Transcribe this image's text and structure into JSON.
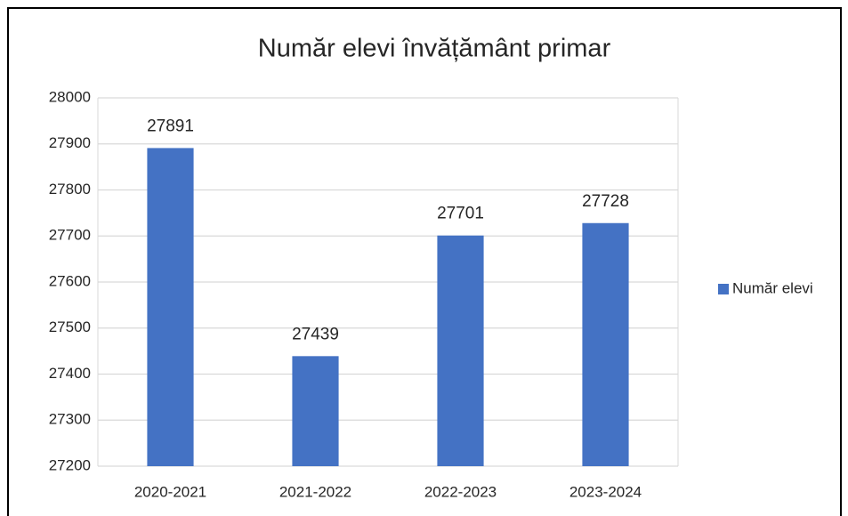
{
  "chart_data": {
    "type": "bar",
    "title": "Număr elevi învățământ primar",
    "categories": [
      "2020-2021",
      "2021-2022",
      "2022-2023",
      "2023-2024"
    ],
    "series": [
      {
        "name": "Număr elevi",
        "color": "#4472c4",
        "values": [
          27891,
          27439,
          27701,
          27728
        ]
      }
    ],
    "ylim": [
      27200,
      28000
    ],
    "yticks": [
      27200,
      27300,
      27400,
      27500,
      27600,
      27700,
      27800,
      27900,
      28000
    ],
    "grid": true,
    "legend": "right",
    "data_labels": true
  }
}
